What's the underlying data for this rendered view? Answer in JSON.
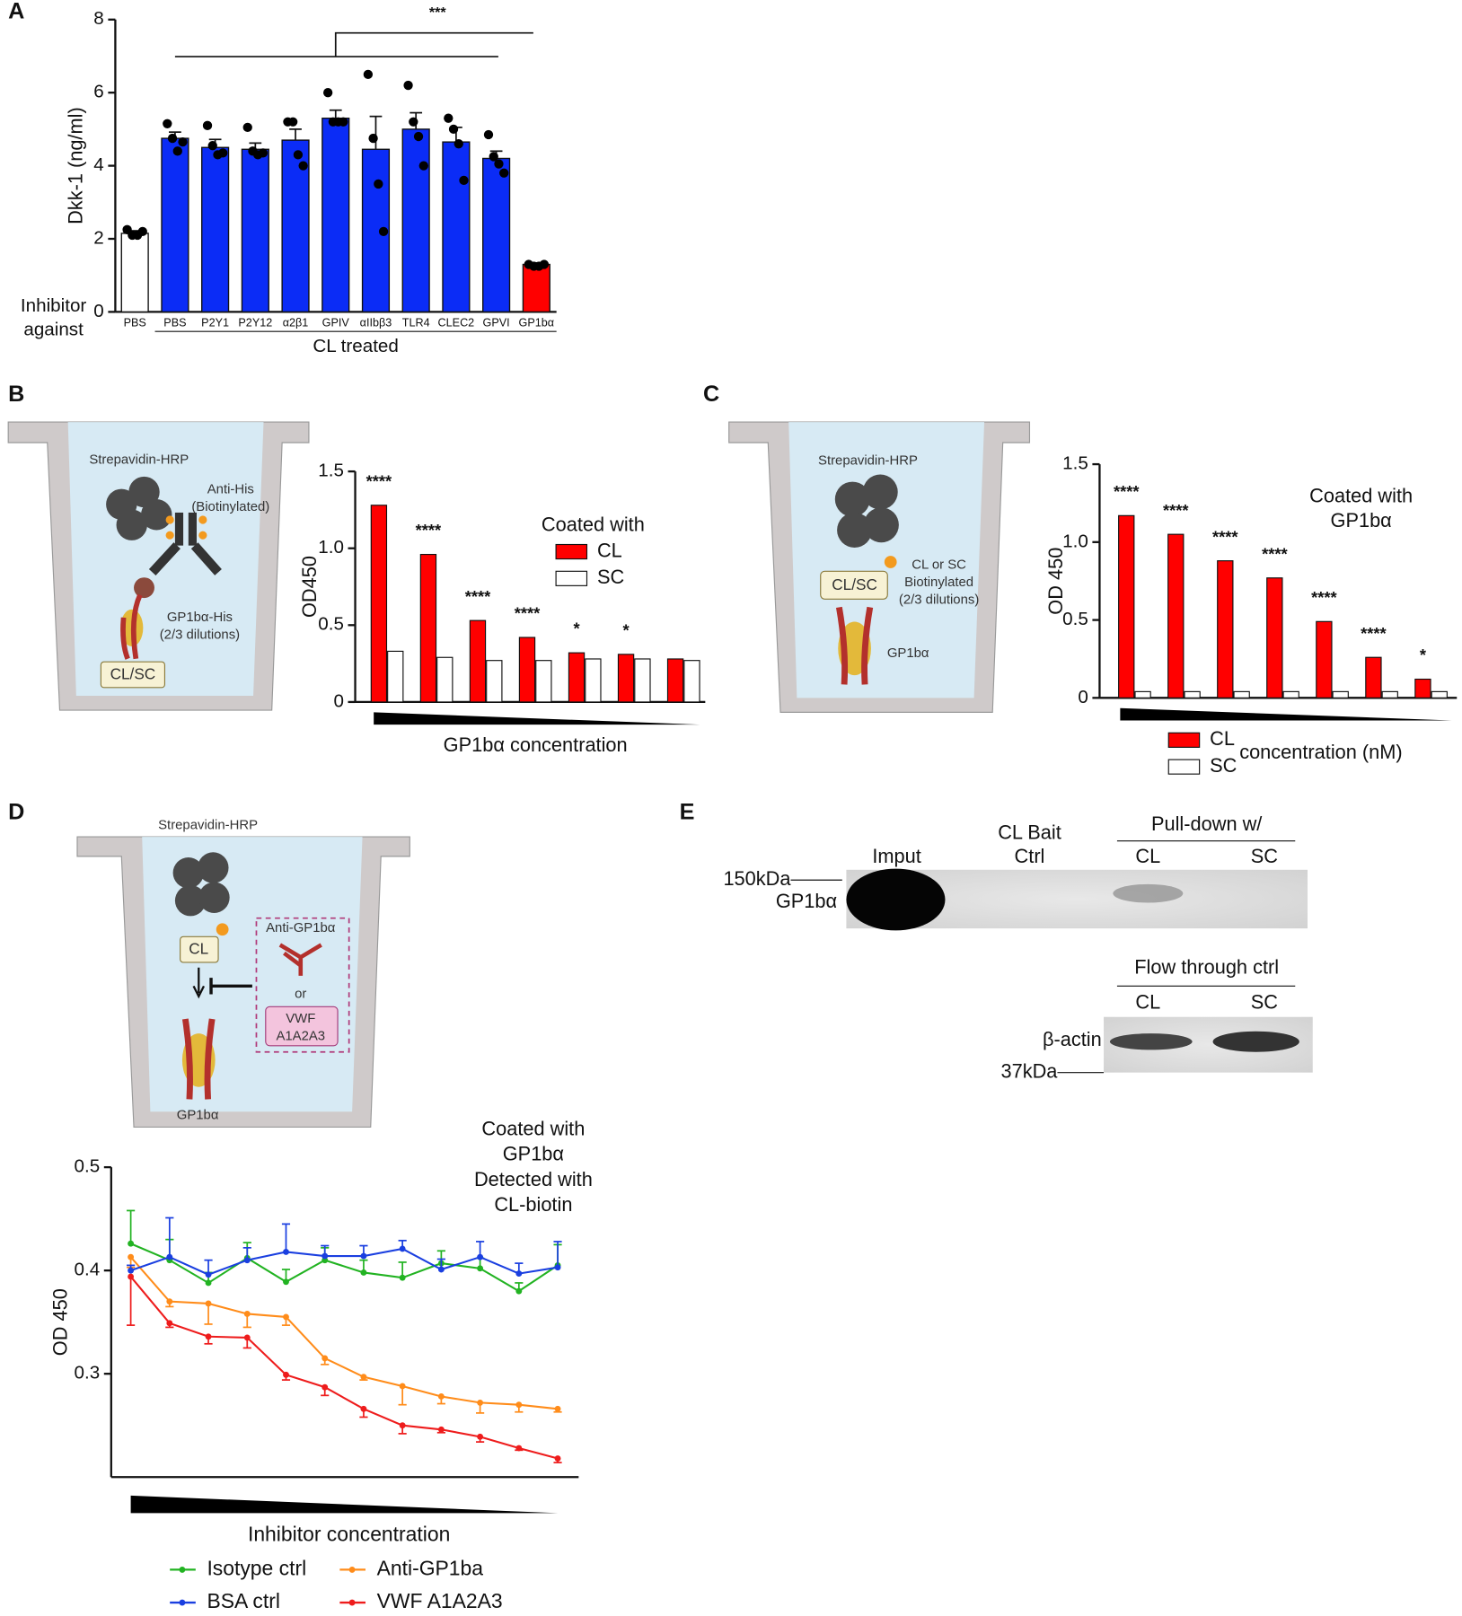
{
  "panel_labels": [
    "A",
    "B",
    "C",
    "D",
    "E"
  ],
  "chart_data": [
    {
      "type": "bar",
      "ylabel": "Dkk-1 (ng/ml)",
      "xlabel": "CL treated",
      "row_label": [
        "Inhibitor",
        "against"
      ],
      "significance": "***",
      "categories": [
        "PBS",
        "PBS",
        "P2Y1",
        "P2Y12",
        "α2β1",
        "GPIV",
        "αIIbβ3",
        "TLR4",
        "CLEC2",
        "GPVI",
        "GP1bα"
      ],
      "values": [
        2.15,
        4.75,
        4.5,
        4.45,
        4.7,
        5.3,
        4.45,
        5.0,
        4.65,
        4.2,
        1.3
      ],
      "errors": [
        0.07,
        0.17,
        0.22,
        0.17,
        0.3,
        0.22,
        0.9,
        0.45,
        0.4,
        0.2,
        0.04
      ],
      "points": [
        [
          2.25,
          2.1,
          2.1,
          2.2
        ],
        [
          5.15,
          4.75,
          4.4,
          4.65
        ],
        [
          5.1,
          4.55,
          4.3,
          4.35
        ],
        [
          5.05,
          4.4,
          4.3,
          4.35
        ],
        [
          5.2,
          5.2,
          4.3,
          4.0
        ],
        [
          6.0,
          5.2,
          5.2,
          5.2
        ],
        [
          6.5,
          4.75,
          3.5,
          2.2
        ],
        [
          6.2,
          5.2,
          4.8,
          4.0
        ],
        [
          5.3,
          5.0,
          4.6,
          3.6
        ],
        [
          4.85,
          4.25,
          4.05,
          3.8
        ],
        [
          1.3,
          1.25,
          1.25,
          1.3
        ]
      ],
      "colors": [
        "#ffffff",
        "#0b2cf6",
        "#0b2cf6",
        "#0b2cf6",
        "#0b2cf6",
        "#0b2cf6",
        "#0b2cf6",
        "#0b2cf6",
        "#0b2cf6",
        "#0b2cf6",
        "#ff0000"
      ],
      "ylim": [
        0,
        8
      ],
      "yticks": [
        0,
        2,
        4,
        6,
        8
      ]
    },
    {
      "type": "grouped-bar",
      "ylabel": "OD450",
      "xlabel": "GP1bα concentration",
      "legend_title": [
        "Coated with"
      ],
      "categories": [
        null,
        null,
        null,
        null,
        null,
        null,
        null
      ],
      "series": [
        {
          "name": "CL",
          "color": "#ff0000",
          "values": [
            1.28,
            0.96,
            0.53,
            0.42,
            0.32,
            0.31,
            0.28
          ]
        },
        {
          "name": "SC",
          "color": "#ffffff",
          "values": [
            0.33,
            0.29,
            0.27,
            0.27,
            0.28,
            0.28,
            0.27
          ]
        }
      ],
      "annotations": [
        "****",
        "****",
        "****",
        "****",
        "*",
        "*",
        null
      ],
      "ylim": [
        0,
        1.5
      ],
      "yticks": [
        0,
        0.5,
        {
          "value": 1,
          "label": "1.0"
        },
        1.5
      ]
    },
    {
      "type": "grouped-bar",
      "ylabel": "OD 450",
      "xlabel": "concentration (nM)",
      "legend_title": [
        "Coated with",
        "GP1bα"
      ],
      "categories": [
        null,
        null,
        null,
        null,
        null,
        null,
        null
      ],
      "series": [
        {
          "name": "CL",
          "color": "#ff0000",
          "values": [
            1.17,
            1.05,
            0.88,
            0.77,
            0.49,
            0.26,
            0.12
          ]
        },
        {
          "name": "SC",
          "color": "#ffffff",
          "values": [
            0.04,
            0.04,
            0.04,
            0.04,
            0.04,
            0.04,
            0.04
          ]
        }
      ],
      "annotations": [
        "****",
        "****",
        "****",
        "****",
        "****",
        "****",
        "*"
      ],
      "ylim": [
        0,
        1.5
      ],
      "yticks": [
        0,
        0.5,
        {
          "value": 1,
          "label": "1.0"
        },
        1.5
      ]
    },
    {
      "type": "line",
      "ylabel": "OD 450",
      "xlabel": "Inhibitor concentration",
      "title": [
        "Coated with",
        "GP1bα",
        "Detected with",
        "CL-biotin"
      ],
      "categories": [
        null,
        null,
        null,
        null,
        null,
        null,
        null,
        null,
        null,
        null,
        null,
        null
      ],
      "series": [
        {
          "name": "Isotype ctrl",
          "color": "#22b322",
          "values": [
            0.426,
            0.41,
            0.388,
            0.412,
            0.389,
            0.41,
            0.398,
            0.393,
            0.407,
            0.402,
            0.38,
            0.405
          ],
          "errors": [
            0.032,
            0.02,
            0.01,
            0.015,
            0.012,
            0.012,
            0.012,
            0.015,
            0.012,
            0.01,
            0.008,
            0.02
          ]
        },
        {
          "name": "Anti-GP1ba",
          "color": "#ff8c1a",
          "values": [
            0.413,
            0.37,
            0.368,
            0.358,
            0.355,
            0.315,
            0.297,
            0.288,
            0.278,
            0.272,
            0.27,
            0.266
          ],
          "errors": [
            0.01,
            0.005,
            0.02,
            0.013,
            0.008,
            0.006,
            0.003,
            0.018,
            0.007,
            0.01,
            0.007,
            0.003
          ]
        },
        {
          "name": "BSA ctrl",
          "color": "#1a3fe0",
          "values": [
            0.4,
            0.413,
            0.396,
            0.41,
            0.418,
            0.414,
            0.414,
            0.421,
            0.401,
            0.413,
            0.397,
            0.403
          ],
          "errors": [
            0.005,
            0.038,
            0.014,
            0.012,
            0.027,
            0.01,
            0.01,
            0.008,
            0.01,
            0.015,
            0.01,
            0.025
          ]
        },
        {
          "name": "VWF A1A2A3",
          "color": "#ee1c1c",
          "values": [
            0.394,
            0.349,
            0.336,
            0.335,
            0.299,
            0.287,
            0.266,
            0.25,
            0.246,
            0.239,
            0.228,
            0.218
          ],
          "errors": [
            0.047,
            0.004,
            0.007,
            0.01,
            0.005,
            0.008,
            0.008,
            0.008,
            0.003,
            0.005,
            0.002,
            0.004
          ]
        }
      ],
      "ylim": [
        0.2,
        0.5
      ],
      "yticks": [
        0.3,
        0.4,
        0.5
      ]
    }
  ],
  "diagrams": {
    "B": [
      "Strepavidin-HRP",
      "Anti-His",
      "(Biotinylated)",
      "GP1bα-His",
      "(2/3 dilutions)",
      "CL/SC"
    ],
    "C": [
      "Strepavidin-HRP",
      "CL or SC",
      "Biotinylated",
      "(2/3 dilutions)",
      "CL/SC",
      "GP1bα"
    ],
    "D": [
      "Strepavidin-HRP",
      "CL",
      "Anti-GP1bα",
      "or",
      "VWF",
      "A1A2A3",
      "GP1bα"
    ]
  },
  "blot": {
    "lanes": [
      "Imput",
      "CL Bait",
      "Ctrl"
    ],
    "pulldown": "Pull-down w/",
    "pulldown_lanes": [
      "CL",
      "SC"
    ],
    "marker_top": "150kDa",
    "protein_top": "GP1bα",
    "flow": "Flow through ctrl",
    "flow_lanes": [
      "CL",
      "SC"
    ],
    "protein_bottom": "β-actin",
    "marker_bottom": "37kDa"
  }
}
